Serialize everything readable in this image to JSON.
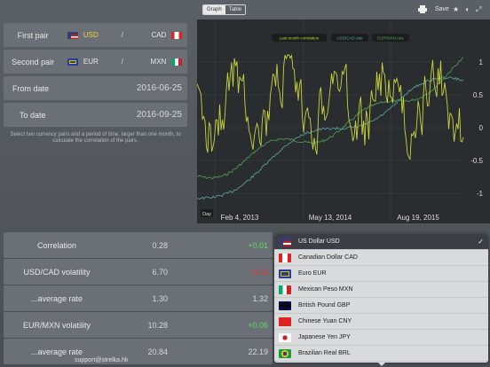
{
  "toolbar": {
    "view_tabs": [
      "Graph",
      "Table"
    ],
    "save_label": "Save",
    "star_icon": "★",
    "theme_icon": "◑",
    "expand_icon": "⤢",
    "print_icon": "print-icon"
  },
  "pairs": {
    "first": {
      "label": "First pair",
      "from": "USD",
      "to": "CAD",
      "sep": "/"
    },
    "second": {
      "label": "Second pair",
      "from": "EUR",
      "to": "MXN",
      "sep": "/"
    }
  },
  "dates": {
    "from": {
      "label": "From date",
      "value": "2016-06-25"
    },
    "to": {
      "label": "To date",
      "value": "2016-09-25"
    }
  },
  "hint": "Select two currency pairs and a period of time, larger than one month, to calculate the correlation of the pairs.",
  "legend": [
    "Last month correlation",
    "USD/CAD rate",
    "EUR/MXN rate"
  ],
  "chart_data": {
    "type": "line",
    "x_labels": [
      "Feb 4, 2013",
      "May 13, 2014",
      "Aug 19, 2015"
    ],
    "y_ticks": [
      "1",
      "0.5",
      "0",
      "-0.5",
      "-1"
    ],
    "ylim": [
      -1,
      1
    ],
    "range_button": "Day",
    "series": [
      {
        "name": "Last month correlation",
        "color": "#c8d33a"
      },
      {
        "name": "USD/CAD rate",
        "color": "#5aa7a0"
      },
      {
        "name": "EUR/MXN rate",
        "color": "#4fa34f"
      }
    ]
  },
  "stats": [
    {
      "label": "Correlation",
      "v1": "0.28",
      "v2": "+0.01",
      "v2_class": "pos"
    },
    {
      "label": "USD/CAD volatility",
      "v1": "6.70",
      "v2": "-0.22",
      "v2_class": "neg"
    },
    {
      "label": "...average rate",
      "v1": "1.30",
      "v2": "1.32",
      "v2_class": ""
    },
    {
      "label": "EUR/MXN volatility",
      "v1": "10.28",
      "v2": "+0.06",
      "v2_class": "pos"
    },
    {
      "label": "...average rate",
      "v1": "20.84",
      "v2": "22.19",
      "v2_class": ""
    }
  ],
  "currencies": [
    {
      "label": "US Dollar USD",
      "flag": "us"
    },
    {
      "label": "Canadian Dollar CAD",
      "flag": "ca"
    },
    {
      "label": "Euro EUR",
      "flag": "eu"
    },
    {
      "label": "Mexican Peso MXN",
      "flag": "mx"
    },
    {
      "label": "British Pound GBP",
      "flag": "gb"
    },
    {
      "label": "Chinese Yuan CNY",
      "flag": "cn"
    },
    {
      "label": "Japanese Yen JPY",
      "flag": "jp"
    },
    {
      "label": "Brazilian Real BRL",
      "flag": "br"
    }
  ],
  "selected_currency": "US Dollar USD",
  "footer": {
    "support": "support@strelka.hk"
  }
}
